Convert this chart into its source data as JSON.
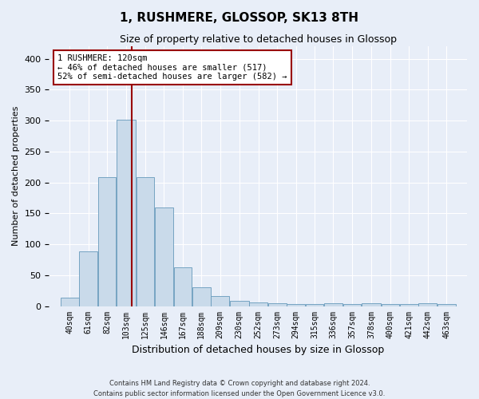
{
  "title": "1, RUSHMERE, GLOSSOP, SK13 8TH",
  "subtitle": "Size of property relative to detached houses in Glossop",
  "xlabel": "Distribution of detached houses by size in Glossop",
  "ylabel": "Number of detached properties",
  "footer_line1": "Contains HM Land Registry data © Crown copyright and database right 2024.",
  "footer_line2": "Contains public sector information licensed under the Open Government Licence v3.0.",
  "annotation_line1": "1 RUSHMERE: 120sqm",
  "annotation_line2": "← 46% of detached houses are smaller (517)",
  "annotation_line3": "52% of semi-detached houses are larger (582) →",
  "bin_edges": [
    40,
    61,
    82,
    103,
    125,
    146,
    167,
    188,
    209,
    230,
    252,
    273,
    294,
    315,
    336,
    357,
    378,
    400,
    421,
    442,
    463,
    484
  ],
  "bar_heights": [
    14,
    88,
    209,
    302,
    209,
    160,
    63,
    30,
    16,
    9,
    6,
    5,
    3,
    3,
    4,
    3,
    4,
    3,
    3,
    4,
    3
  ],
  "bar_color": "#c9daea",
  "bar_edge_color": "#6699bb",
  "vline_x": 120,
  "vline_color": "#990000",
  "annotation_box_color": "#990000",
  "annotation_box_fill": "white",
  "ylim": [
    0,
    420
  ],
  "background_color": "#e8eef8",
  "plot_bg_color": "#e8eef8",
  "grid_color": "white",
  "title_fontsize": 11,
  "subtitle_fontsize": 9,
  "tick_label_fontsize": 7,
  "ylabel_fontsize": 8,
  "xlabel_fontsize": 9,
  "tick_labels": [
    "40sqm",
    "61sqm",
    "82sqm",
    "103sqm",
    "125sqm",
    "146sqm",
    "167sqm",
    "188sqm",
    "209sqm",
    "230sqm",
    "252sqm",
    "273sqm",
    "294sqm",
    "315sqm",
    "336sqm",
    "357sqm",
    "378sqm",
    "400sqm",
    "421sqm",
    "442sqm",
    "463sqm"
  ]
}
